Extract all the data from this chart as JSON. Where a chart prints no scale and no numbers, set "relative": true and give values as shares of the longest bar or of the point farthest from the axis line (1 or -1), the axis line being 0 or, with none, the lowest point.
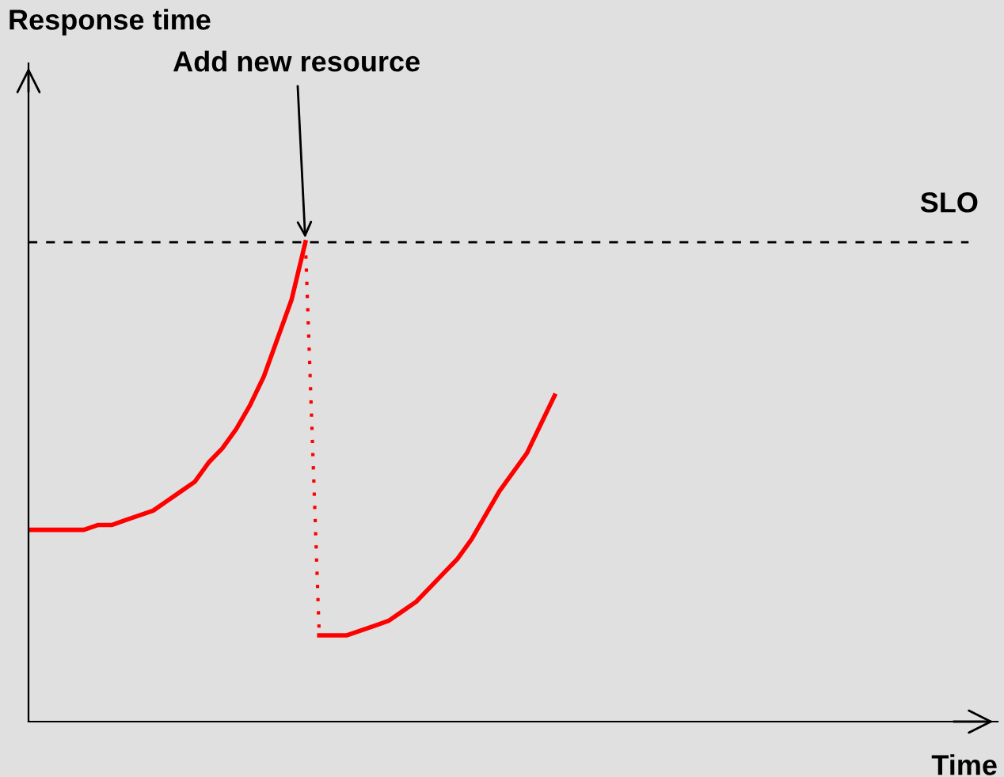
{
  "chart_data": {
    "type": "line",
    "relative": true,
    "xlabel": "Time",
    "categories": [
      null,
      null,
      null,
      null,
      null,
      null,
      null,
      null,
      null,
      null,
      null,
      null,
      null,
      null,
      null,
      null,
      null,
      null,
      null,
      null,
      null,
      null,
      null,
      null,
      null,
      null,
      null,
      null,
      null,
      null,
      null,
      null,
      null,
      null,
      null,
      null,
      null,
      null,
      null,
      null,
      null,
      null,
      null,
      null,
      null,
      null,
      null,
      null,
      null,
      null,
      null,
      null,
      null,
      null,
      null,
      null,
      null,
      null,
      null,
      null,
      null,
      null,
      null,
      null,
      null,
      null,
      null,
      null,
      null,
      null,
      null
    ],
    "series": [
      {
        "color": "#ff0000",
        "line_style": "solid",
        "values": [
          0.4,
          0.4,
          0.4,
          0.4,
          0.4,
          0.41,
          0.41,
          0.42,
          0.43,
          0.44,
          0.46,
          0.48,
          0.5,
          0.54,
          0.57,
          0.61,
          0.66,
          0.72,
          0.8,
          0.88,
          1.0,
          null,
          null,
          null,
          null,
          null,
          null,
          null,
          null,
          null,
          null,
          null,
          null,
          null,
          null,
          null,
          null,
          null,
          null,
          null,
          null,
          null,
          null,
          null,
          null,
          null,
          null,
          null,
          null,
          null,
          null,
          null,
          null,
          null,
          null,
          null,
          null,
          null,
          null,
          null,
          null,
          null,
          null,
          null,
          null,
          null,
          null,
          null,
          null,
          null,
          null
        ]
      },
      {
        "color": "#ff0000",
        "line_style": "dotted",
        "values": [
          null,
          null,
          null,
          null,
          null,
          null,
          null,
          null,
          null,
          null,
          null,
          null,
          null,
          null,
          null,
          null,
          null,
          null,
          null,
          null,
          1.0,
          0.18,
          null,
          null,
          null,
          null,
          null,
          null,
          null,
          null,
          null,
          null,
          null,
          null,
          null,
          null,
          null,
          null,
          null,
          null,
          null,
          null,
          null,
          null,
          null,
          null,
          null,
          null,
          null,
          null,
          null,
          null,
          null,
          null,
          null,
          null,
          null,
          null,
          null,
          null,
          null,
          null,
          null,
          null,
          null,
          null,
          null,
          null,
          null,
          null,
          null
        ]
      },
      {
        "color": "#ff0000",
        "line_style": "solid",
        "values": [
          null,
          null,
          null,
          null,
          null,
          null,
          null,
          null,
          null,
          null,
          null,
          null,
          null,
          null,
          null,
          null,
          null,
          null,
          null,
          null,
          null,
          0.18,
          0.18,
          0.18,
          0.19,
          0.2,
          0.21,
          0.23,
          0.25,
          0.28,
          0.31,
          0.34,
          0.38,
          0.43,
          0.48,
          0.52,
          0.56,
          0.62,
          0.68,
          null,
          null,
          null,
          null,
          null,
          null,
          null,
          null,
          null,
          null,
          null,
          null,
          null,
          null,
          null,
          null,
          null,
          null,
          null,
          null,
          null,
          null,
          null,
          null,
          null,
          null,
          null,
          null,
          null,
          null,
          null,
          null
        ]
      }
    ],
    "ref_lines": [
      {
        "axis": "y",
        "value": 1.0,
        "label": "SLO",
        "color": "#000000",
        "line_style": "dashed"
      }
    ],
    "annotations": [
      "Response time",
      "Add new resource"
    ],
    "grid": false,
    "legend": false,
    "marker": "none"
  }
}
